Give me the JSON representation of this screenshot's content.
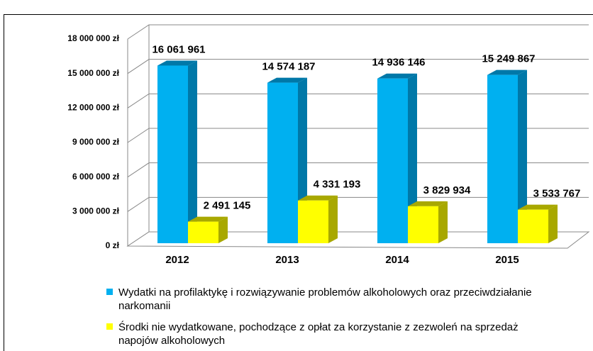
{
  "chart_data": {
    "type": "bar3d",
    "categories": [
      "2012",
      "2013",
      "2014",
      "2015"
    ],
    "series": [
      {
        "name": "Wydatki na profilaktykę i rozwiązywanie problemów alkoholowych oraz przeciwdziałanie narkomanii",
        "color": "#00b0f0",
        "side_color": "#0078a8",
        "values": [
          16061961,
          14574187,
          14936146,
          15249867
        ],
        "value_labels": [
          "16 061 961",
          "14 574 187",
          "14 936 146",
          "15 249 867"
        ]
      },
      {
        "name": "Środki nie wydatkowane, pochodzące z opłat za korzystanie z zezwoleń na sprzedaż napojów alkoholowych",
        "color": "#ffff00",
        "side_color": "#a8a800",
        "values": [
          2491145,
          4331193,
          3829934,
          3533767
        ],
        "value_labels": [
          "2 491 145",
          "4 331 193",
          "3 829 934",
          "3 533 767"
        ]
      }
    ],
    "ylim": [
      0,
      18000000
    ],
    "yticks": [
      {
        "value": 0,
        "label": "0 zł"
      },
      {
        "value": 3000000,
        "label": "3 000 000 zł"
      },
      {
        "value": 6000000,
        "label": "6 000 000 zł"
      },
      {
        "value": 9000000,
        "label": "9 000 000 zł"
      },
      {
        "value": 12000000,
        "label": "12 000 000 zł"
      },
      {
        "value": 15000000,
        "label": "15 000 000 zł"
      },
      {
        "value": 18000000,
        "label": "18 000 000 zł"
      }
    ],
    "grid": true
  }
}
